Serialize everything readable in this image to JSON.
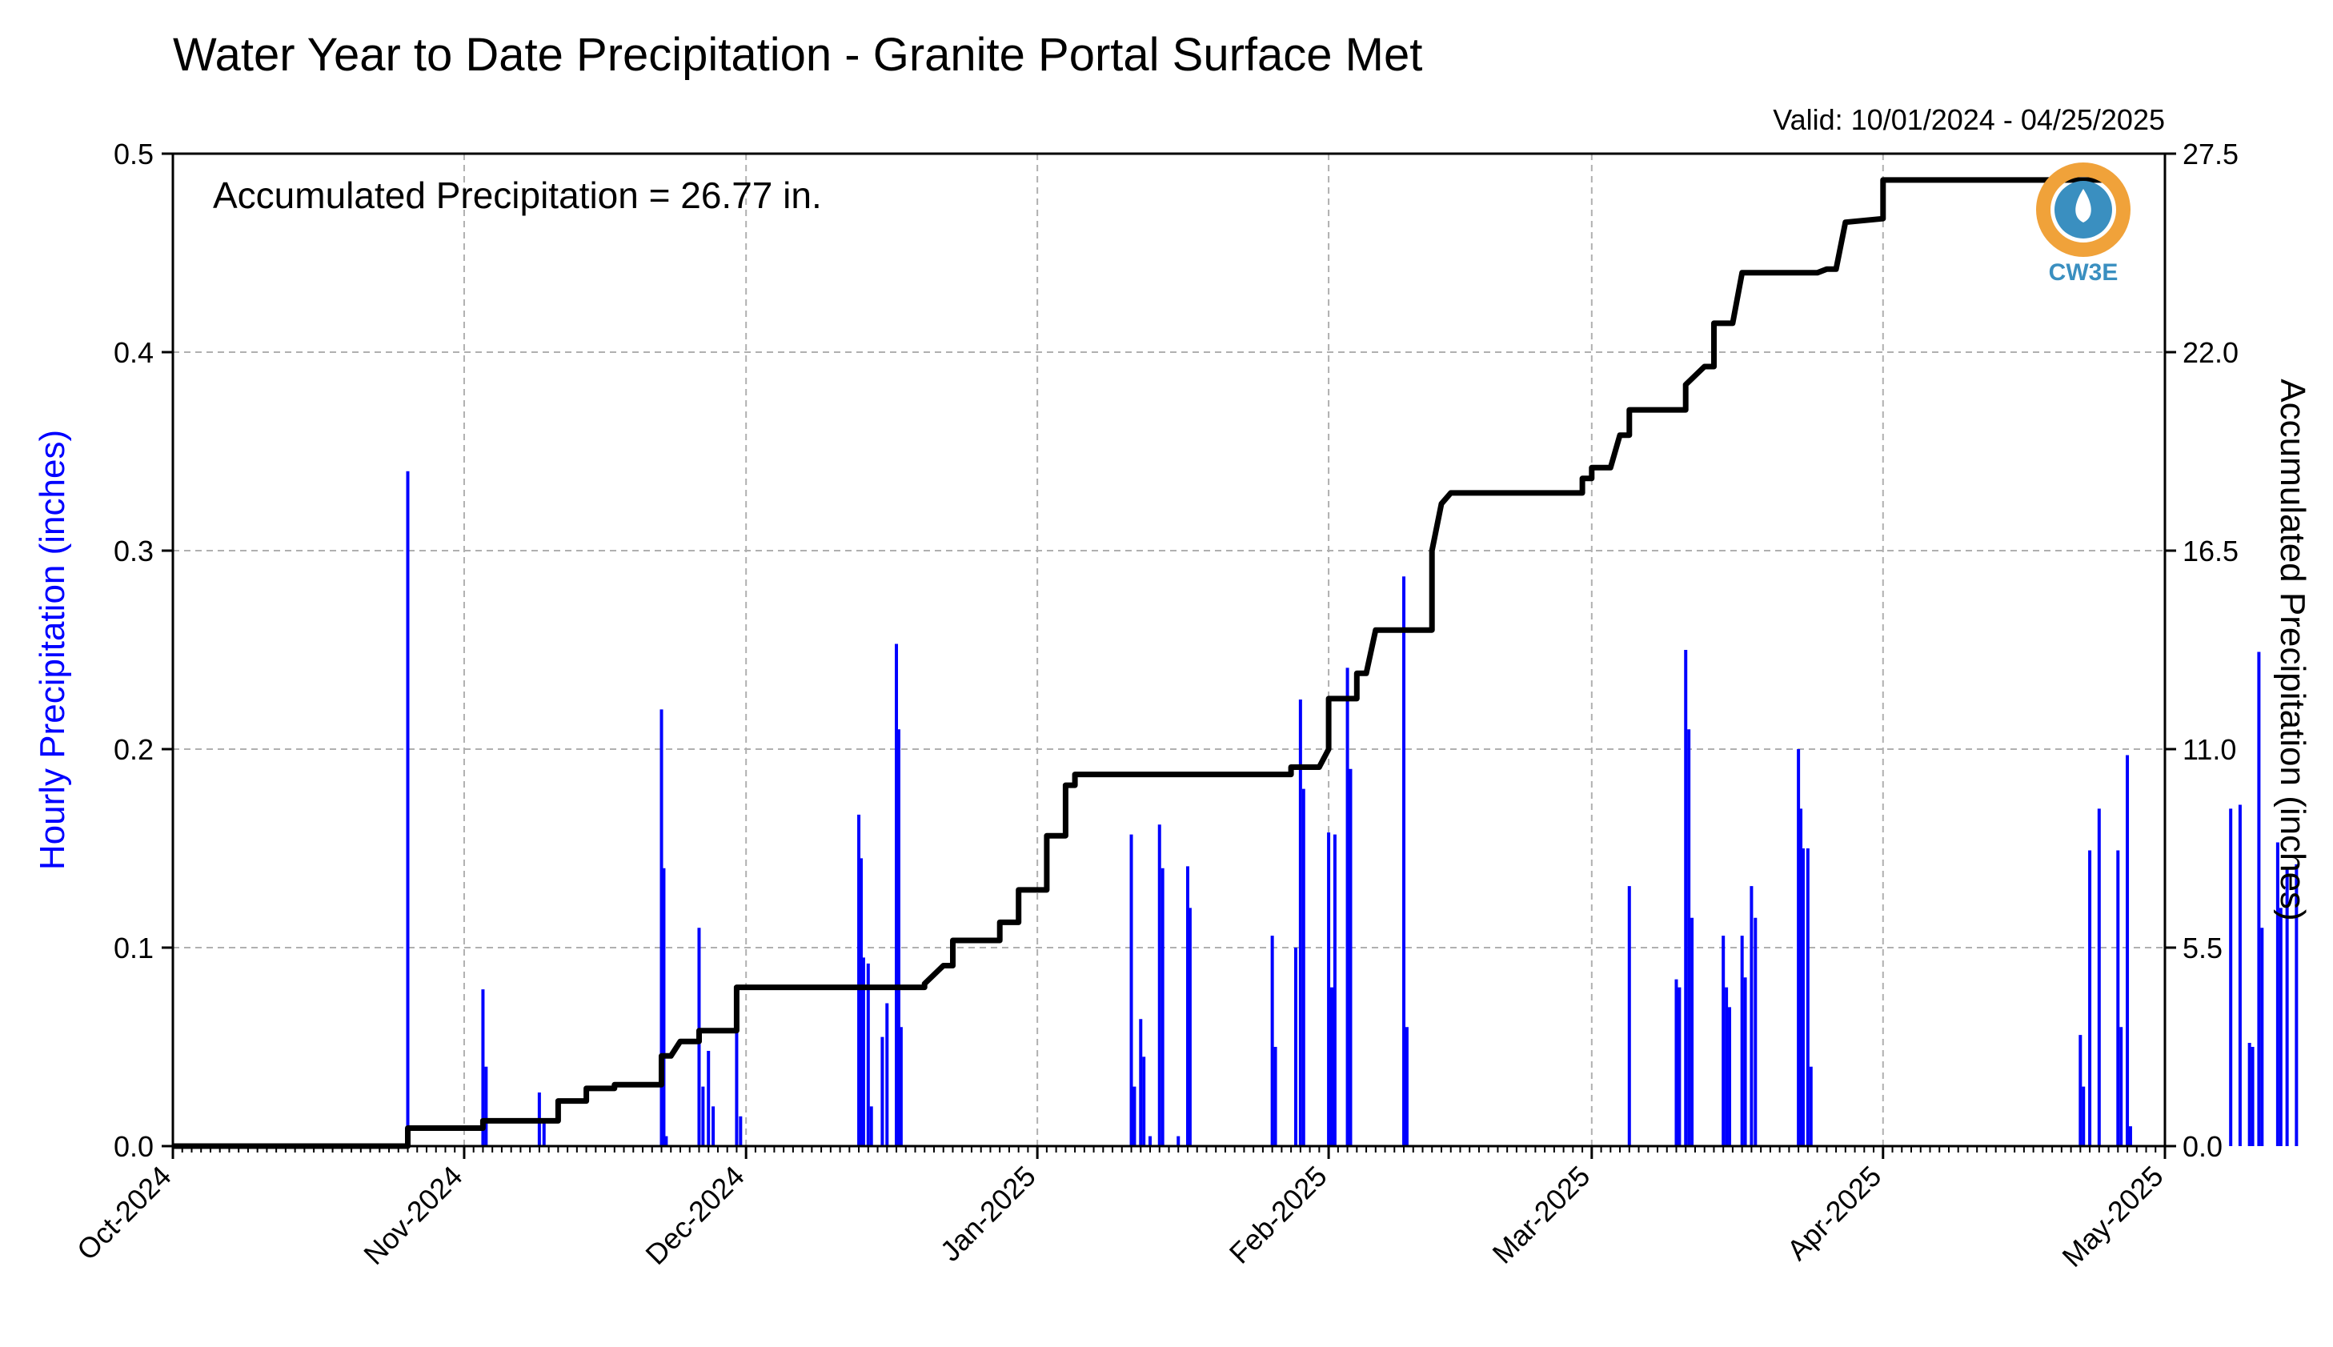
{
  "chart_data": {
    "type": "bar",
    "title": "Water Year to Date Precipitation - Granite Portal Surface Met",
    "valid": "Valid: 10/01/2024 - 04/25/2025",
    "annotation": "Accumulated Precipitation = 26.77 in.",
    "logo": "CW3E",
    "grid": true,
    "xlim": [
      "2024-10-01",
      "2025-05-01"
    ],
    "x_ticks": [
      {
        "date": "2024-10-01",
        "label": "Oct-2024"
      },
      {
        "date": "2024-11-01",
        "label": "Nov-2024"
      },
      {
        "date": "2024-12-01",
        "label": "Dec-2024"
      },
      {
        "date": "2025-01-01",
        "label": "Jan-2025"
      },
      {
        "date": "2025-02-01",
        "label": "Feb-2025"
      },
      {
        "date": "2025-03-01",
        "label": "Mar-2025"
      },
      {
        "date": "2025-04-01",
        "label": "Apr-2025"
      },
      {
        "date": "2025-05-01",
        "label": "May-2025"
      }
    ],
    "y_left": {
      "label": "Hourly Precipitation (inches)",
      "ylim": [
        0,
        0.5
      ],
      "ticks": [
        "0.0",
        "0.1",
        "0.2",
        "0.3",
        "0.4",
        "0.5"
      ],
      "color": "#0000ff"
    },
    "y_right": {
      "label": "Accumulated Precipitation (inches)",
      "ylim": [
        0,
        27.5
      ],
      "ticks": [
        "0.0",
        "5.5",
        "11.0",
        "16.5",
        "22.0",
        "27.5"
      ],
      "color": "#000000"
    },
    "series": [
      {
        "kind": "bar",
        "color": "#0000ff",
        "points": [
          [
            "2024-10-26",
            0.34
          ],
          [
            "2024-11-09",
            0.027
          ],
          [
            "2024-11-09T12",
            0.012
          ],
          [
            "2024-11-03",
            0.079
          ],
          [
            "2024-11-03T08",
            0.04
          ],
          [
            "2024-11-22",
            0.22
          ],
          [
            "2024-11-22T06",
            0.14
          ],
          [
            "2024-11-22T12",
            0.005
          ],
          [
            "2024-11-26",
            0.11
          ],
          [
            "2024-11-26T10",
            0.03
          ],
          [
            "2024-11-27",
            0.048
          ],
          [
            "2024-11-27T12",
            0.02
          ],
          [
            "2024-11-30",
            0.06
          ],
          [
            "2024-11-30T10",
            0.015
          ],
          [
            "2024-12-13",
            0.167
          ],
          [
            "2024-12-13T06",
            0.145
          ],
          [
            "2024-12-13T12",
            0.095
          ],
          [
            "2024-12-14",
            0.092
          ],
          [
            "2024-12-14T08",
            0.02
          ],
          [
            "2024-12-15T12",
            0.055
          ],
          [
            "2024-12-16",
            0.072
          ],
          [
            "2024-12-17",
            0.253
          ],
          [
            "2024-12-17T06",
            0.21
          ],
          [
            "2024-12-17T12",
            0.06
          ],
          [
            "2025-01-11",
            0.157
          ],
          [
            "2025-01-11T08",
            0.03
          ],
          [
            "2025-01-12",
            0.064
          ],
          [
            "2025-01-12T08",
            0.045
          ],
          [
            "2025-01-13",
            0.005
          ],
          [
            "2025-01-14",
            0.162
          ],
          [
            "2025-01-14T08",
            0.14
          ],
          [
            "2025-01-16",
            0.005
          ],
          [
            "2025-01-17",
            0.141
          ],
          [
            "2025-01-17T06",
            0.12
          ],
          [
            "2025-01-26",
            0.106
          ],
          [
            "2025-01-26T08",
            0.05
          ],
          [
            "2025-01-28T12",
            0.1
          ],
          [
            "2025-01-29",
            0.225
          ],
          [
            "2025-01-29T08",
            0.18
          ],
          [
            "2025-02-01",
            0.158
          ],
          [
            "2025-02-01T08",
            0.08
          ],
          [
            "2025-02-01T16",
            0.157
          ],
          [
            "2025-02-03",
            0.241
          ],
          [
            "2025-02-03T08",
            0.19
          ],
          [
            "2025-02-09",
            0.287
          ],
          [
            "2025-02-09T08",
            0.06
          ],
          [
            "2025-03-05",
            0.131
          ],
          [
            "2025-03-10",
            0.084
          ],
          [
            "2025-03-10T08",
            0.08
          ],
          [
            "2025-03-11",
            0.25
          ],
          [
            "2025-03-11T08",
            0.21
          ],
          [
            "2025-03-11T16",
            0.115
          ],
          [
            "2025-03-15",
            0.106
          ],
          [
            "2025-03-15T08",
            0.08
          ],
          [
            "2025-03-15T16",
            0.07
          ],
          [
            "2025-03-17",
            0.106
          ],
          [
            "2025-03-17T08",
            0.085
          ],
          [
            "2025-03-18",
            0.131
          ],
          [
            "2025-03-18T10",
            0.115
          ],
          [
            "2025-03-23",
            0.2
          ],
          [
            "2025-03-23T06",
            0.17
          ],
          [
            "2025-03-23T12",
            0.15
          ],
          [
            "2025-03-24",
            0.15
          ],
          [
            "2025-03-24T08",
            0.04
          ],
          [
            "2025-04-22",
            0.056
          ],
          [
            "2025-04-22T08",
            0.03
          ],
          [
            "2025-04-23",
            0.149
          ],
          [
            "2025-04-24",
            0.17
          ],
          [
            "2025-04-26",
            0.149
          ],
          [
            "2025-04-26T08",
            0.06
          ],
          [
            "2025-04-27",
            0.197
          ],
          [
            "2025-04-27T08",
            0.01
          ],
          [
            "2025-05-08",
            0.17
          ],
          [
            "2025-05-09",
            0.172
          ],
          [
            "2025-05-10",
            0.052
          ],
          [
            "2025-05-10T08",
            0.05
          ],
          [
            "2025-05-11",
            0.249
          ],
          [
            "2025-05-11T08",
            0.11
          ],
          [
            "2025-05-13",
            0.153
          ],
          [
            "2025-05-13T08",
            0.12
          ],
          [
            "2025-05-14",
            0.14
          ],
          [
            "2025-05-15",
            0.142
          ]
        ]
      },
      {
        "kind": "line",
        "color": "#000000",
        "points": [
          [
            "2024-10-01",
            0.0
          ],
          [
            "2024-10-26",
            0.0
          ],
          [
            "2024-10-26",
            0.5
          ],
          [
            "2024-11-01",
            0.5
          ],
          [
            "2024-11-03",
            0.5
          ],
          [
            "2024-11-03",
            0.7
          ],
          [
            "2024-11-11",
            0.7
          ],
          [
            "2024-11-11",
            1.25
          ],
          [
            "2024-11-14",
            1.25
          ],
          [
            "2024-11-14",
            1.6
          ],
          [
            "2024-11-17",
            1.6
          ],
          [
            "2024-11-17",
            1.7
          ],
          [
            "2024-11-22",
            1.7
          ],
          [
            "2024-11-22",
            2.5
          ],
          [
            "2024-11-23",
            2.5
          ],
          [
            "2024-11-24",
            2.9
          ],
          [
            "2024-11-26",
            2.9
          ],
          [
            "2024-11-26",
            3.2
          ],
          [
            "2024-11-30",
            3.2
          ],
          [
            "2024-11-30",
            4.4
          ],
          [
            "2024-12-20",
            4.4
          ],
          [
            "2024-12-20",
            4.5
          ],
          [
            "2024-12-20",
            4.5
          ],
          [
            "2024-12-22",
            5.0
          ],
          [
            "2024-12-23",
            5.0
          ],
          [
            "2024-12-23",
            5.7
          ],
          [
            "2024-12-28",
            5.7
          ],
          [
            "2024-12-28",
            6.2
          ],
          [
            "2024-12-30",
            6.2
          ],
          [
            "2024-12-30",
            7.1
          ],
          [
            "2025-01-02",
            7.1
          ],
          [
            "2025-01-02",
            8.6
          ],
          [
            "2025-01-04",
            8.6
          ],
          [
            "2025-01-04",
            10.0
          ],
          [
            "2025-01-05",
            10.0
          ],
          [
            "2025-01-05",
            10.3
          ],
          [
            "2025-01-28",
            10.3
          ],
          [
            "2025-01-28",
            10.5
          ],
          [
            "2025-01-31",
            10.5
          ],
          [
            "2025-02-01",
            11.0
          ],
          [
            "2025-02-01",
            12.4
          ],
          [
            "2025-02-04",
            12.4
          ],
          [
            "2025-02-04",
            13.1
          ],
          [
            "2025-02-05",
            13.1
          ],
          [
            "2025-02-06",
            14.3
          ],
          [
            "2025-02-12",
            14.3
          ],
          [
            "2025-02-12",
            16.5
          ],
          [
            "2025-02-13",
            17.8
          ],
          [
            "2025-02-14",
            18.1
          ],
          [
            "2025-02-28",
            18.1
          ],
          [
            "2025-02-28",
            18.5
          ],
          [
            "2025-03-01",
            18.5
          ],
          [
            "2025-03-01",
            18.8
          ],
          [
            "2025-03-03",
            18.8
          ],
          [
            "2025-03-04",
            19.7
          ],
          [
            "2025-03-05",
            19.7
          ],
          [
            "2025-03-05",
            20.4
          ],
          [
            "2025-03-11",
            20.4
          ],
          [
            "2025-03-11",
            21.1
          ],
          [
            "2025-03-13",
            21.6
          ],
          [
            "2025-03-14",
            21.6
          ],
          [
            "2025-03-14",
            22.8
          ],
          [
            "2025-03-16",
            22.8
          ],
          [
            "2025-03-17",
            24.2
          ],
          [
            "2025-03-25",
            24.2
          ],
          [
            "2025-03-26",
            24.3
          ],
          [
            "2025-03-27",
            24.3
          ],
          [
            "2025-03-28",
            25.6
          ],
          [
            "2025-04-01",
            25.7
          ],
          [
            "2025-04-01",
            26.77
          ],
          [
            "2025-04-25",
            26.77
          ]
        ]
      }
    ]
  }
}
